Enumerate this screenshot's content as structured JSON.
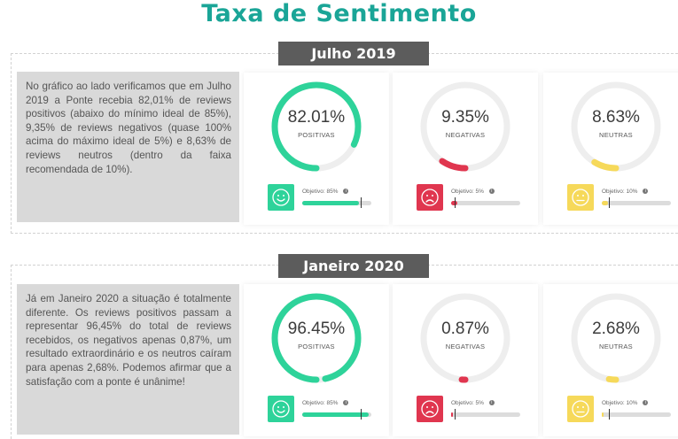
{
  "title": "Taxa de Sentimento",
  "colors": {
    "positive": "#2ed39a",
    "negative": "#e0364f",
    "neutral": "#f6d95a",
    "track": "#eeeeee"
  },
  "sections": [
    {
      "period": "Julho 2019",
      "text": "No gráfico ao lado verificamos que em Julho 2019 a Ponte recebia 82,01% de reviews positivos (abaixo do mínimo ideal de 85%), 9,35% de reviews negativos (quase 100% acima do máximo ideal de 5%) e 8,63% de reviews neutros (dentro da faixa recomendada de 10%).",
      "cards": [
        {
          "value": "82.01%",
          "label": "POSITIVAS",
          "objective": "Objetivo: 85%",
          "pct": 82.01,
          "target": 85,
          "kind": "positive",
          "icon": "smile-icon"
        },
        {
          "value": "9.35%",
          "label": "NEGATIVAS",
          "objective": "Objetivo: 5%",
          "pct": 9.35,
          "target": 5,
          "kind": "negative",
          "icon": "frown-icon"
        },
        {
          "value": "8.63%",
          "label": "NEUTRAS",
          "objective": "Objetivo: 10%",
          "pct": 8.63,
          "target": 10,
          "kind": "neutral",
          "icon": "neutral-face-icon"
        }
      ]
    },
    {
      "period": "Janeiro 2020",
      "text": "Já em Janeiro 2020 a situação é totalmente diferente. Os reviews positivos passam a representar 96,45% do total de reviews recebidos, os negativos apenas 0,87%, um resultado extraordinário e os neutros caíram para apenas 2,68%. Podemos afirmar que a satisfação com a ponte é unânime!",
      "cards": [
        {
          "value": "96.45%",
          "label": "POSITIVAS",
          "objective": "Objetivo: 85%",
          "pct": 96.45,
          "target": 85,
          "kind": "positive",
          "icon": "smile-icon"
        },
        {
          "value": "0.87%",
          "label": "NEGATIVAS",
          "objective": "Objetivo: 5%",
          "pct": 0.87,
          "target": 5,
          "kind": "negative",
          "icon": "frown-icon"
        },
        {
          "value": "2.68%",
          "label": "NEUTRAS",
          "objective": "Objetivo: 10%",
          "pct": 2.68,
          "target": 10,
          "kind": "neutral",
          "icon": "neutral-face-icon"
        }
      ]
    }
  ]
}
